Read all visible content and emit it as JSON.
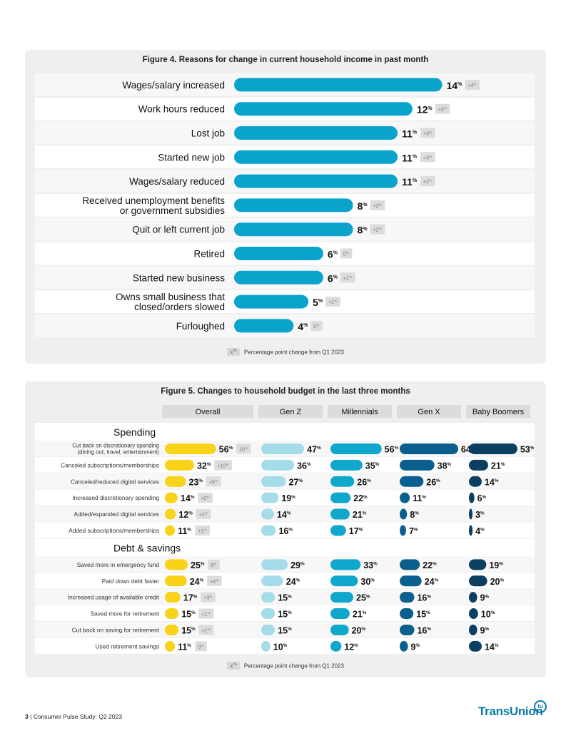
{
  "chart_data": [
    {
      "type": "bar",
      "orientation": "horizontal",
      "title": "Figure 4. Reasons for change in current household income in past month",
      "categories": [
        "Wages/salary increased",
        "Work hours reduced",
        "Lost job",
        "Started new job",
        "Wages/salary reduced",
        "Received unemployment benefits\nor government subsidies",
        "Quit or left current job",
        "Retired",
        "Started new business",
        "Owns small business that\nclosed/orders slowed",
        "Furloughed"
      ],
      "values": [
        14,
        12,
        11,
        11,
        11,
        8,
        8,
        6,
        6,
        5,
        4
      ],
      "changes": [
        "+4",
        "+3",
        "+3",
        "+3",
        "+2",
        "+2",
        "+2",
        "0",
        "+1",
        "+1",
        "0"
      ],
      "unit": "%",
      "change_unit": "%",
      "xlim": [
        0,
        16
      ],
      "bar_color": "#0aa3cc",
      "legend": {
        "chip": "X",
        "chip_unit": "%",
        "text": "Percentage point change from Q1 2023"
      }
    },
    {
      "type": "bar",
      "orientation": "horizontal",
      "title": "Figure 5. Changes to household budget in the last three months",
      "xlim": [
        0,
        80
      ],
      "unit": "%",
      "change_unit": "%",
      "series": [
        {
          "name": "Overall",
          "color": "#f9d21a"
        },
        {
          "name": "Gen Z",
          "color": "#a5dcea"
        },
        {
          "name": "Millennials",
          "color": "#10a7cc"
        },
        {
          "name": "Gen X",
          "color": "#0a5f8e"
        },
        {
          "name": "Baby Boomers",
          "color": "#0b3e60"
        }
      ],
      "groups": [
        {
          "label": "Spending",
          "rows": [
            {
              "label": "Cut back on discretionary spending\n(dining out, travel, entertainment)",
              "values": [
                56,
                47,
                56,
                64,
                53
              ],
              "change": "10"
            },
            {
              "label": "Canceled subscriptions/memberships",
              "values": [
                32,
                36,
                35,
                38,
                21
              ],
              "change": "+10"
            },
            {
              "label": "Canceled/reduced digital services",
              "values": [
                23,
                27,
                26,
                26,
                14
              ],
              "change": "+5"
            },
            {
              "label": "Increased discretionary spending",
              "values": [
                14,
                19,
                22,
                11,
                6
              ],
              "change": "+2"
            },
            {
              "label": "Added/expanded digital services",
              "values": [
                12,
                14,
                21,
                8,
                3
              ],
              "change": "+2"
            },
            {
              "label": "Added subscriptions/memberships",
              "values": [
                11,
                16,
                17,
                7,
                4
              ],
              "change": "+1"
            }
          ]
        },
        {
          "label": "Debt & savings",
          "rows": [
            {
              "label": "Saved more in emergency fund",
              "values": [
                25,
                29,
                33,
                22,
                19
              ],
              "change": "0"
            },
            {
              "label": "Paid down debt faster",
              "values": [
                24,
                24,
                30,
                24,
                20
              ],
              "change": "+4"
            },
            {
              "label": "Increased usage of available credit",
              "values": [
                17,
                15,
                25,
                16,
                9
              ],
              "change": "+3"
            },
            {
              "label": "Saved more for retirement",
              "values": [
                15,
                15,
                21,
                15,
                10
              ],
              "change": "+1"
            },
            {
              "label": "Cut back on saving for retirement",
              "values": [
                15,
                15,
                20,
                16,
                9
              ],
              "change": "+1"
            },
            {
              "label": "Used retirement savings",
              "values": [
                11,
                10,
                12,
                9,
                14
              ],
              "change": "0"
            }
          ]
        }
      ],
      "legend": {
        "chip": "X",
        "chip_unit": "%",
        "text": "Percentage point change from Q1 2023"
      }
    }
  ],
  "footer": {
    "page": "3",
    "separator": "|",
    "text": "Consumer Pulse Study: Q2 2023"
  },
  "brand": {
    "name": "TransUnion",
    "mark": "tu",
    "color": "#0d7aa8"
  }
}
